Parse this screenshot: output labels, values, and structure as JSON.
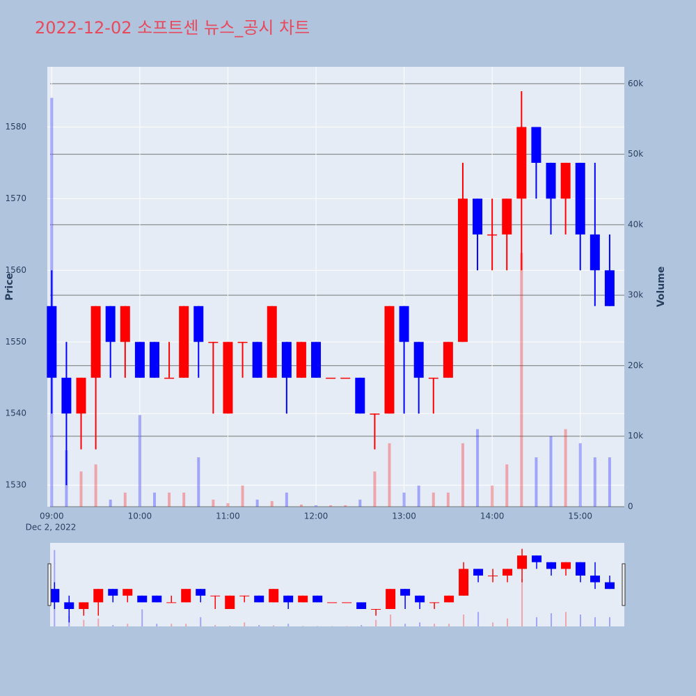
{
  "chart_data": {
    "type": "candlestick",
    "title": "2022-12-02 소프트센 뉴스_공시 차트",
    "y_label": "Price",
    "y2_label": "Volume",
    "x_date_label": "Dec 2, 2022",
    "increasing_color": "#ff0000",
    "decreasing_color": "#0000ff",
    "x": [
      "09:00",
      "09:10",
      "09:20",
      "09:30",
      "09:40",
      "09:50",
      "10:00",
      "10:10",
      "10:20",
      "10:30",
      "10:40",
      "10:50",
      "11:00",
      "11:10",
      "11:20",
      "11:30",
      "11:40",
      "11:50",
      "12:00",
      "12:10",
      "12:20",
      "12:30",
      "12:40",
      "12:50",
      "13:00",
      "13:10",
      "13:20",
      "13:30",
      "13:40",
      "13:50",
      "14:00",
      "14:10",
      "14:20",
      "14:30",
      "14:40",
      "14:50",
      "15:00",
      "15:10",
      "15:20"
    ],
    "open": [
      1555,
      1545,
      1540,
      1545,
      1555,
      1550,
      1550,
      1550,
      1545,
      1545,
      1555,
      1550,
      1540,
      1550,
      1550,
      1545,
      1550,
      1545,
      1550,
      1545,
      1545,
      1545,
      1540,
      1540,
      1555,
      1550,
      1545,
      1545,
      1550,
      1570,
      1565,
      1565,
      1570,
      1580,
      1575,
      1570,
      1575,
      1565,
      1560
    ],
    "high": [
      1560,
      1550,
      1545,
      1555,
      1555,
      1555,
      1550,
      1550,
      1550,
      1555,
      1555,
      1550,
      1550,
      1550,
      1550,
      1555,
      1550,
      1550,
      1550,
      1545,
      1545,
      1545,
      1540,
      1555,
      1555,
      1550,
      1545,
      1550,
      1575,
      1570,
      1570,
      1570,
      1585,
      1580,
      1575,
      1575,
      1575,
      1575,
      1565
    ],
    "low": [
      1540,
      1530,
      1535,
      1535,
      1545,
      1545,
      1545,
      1545,
      1545,
      1545,
      1545,
      1540,
      1540,
      1545,
      1545,
      1545,
      1540,
      1545,
      1545,
      1545,
      1545,
      1540,
      1535,
      1540,
      1540,
      1540,
      1540,
      1545,
      1550,
      1560,
      1560,
      1560,
      1560,
      1570,
      1565,
      1565,
      1560,
      1555,
      1555
    ],
    "close": [
      1545,
      1540,
      1545,
      1555,
      1550,
      1555,
      1545,
      1545,
      1545,
      1555,
      1550,
      1550,
      1550,
      1550,
      1545,
      1555,
      1545,
      1550,
      1545,
      1545,
      1545,
      1540,
      1540,
      1555,
      1550,
      1545,
      1545,
      1550,
      1570,
      1565,
      1565,
      1570,
      1580,
      1575,
      1570,
      1575,
      1565,
      1560,
      1555
    ],
    "volume": [
      58000,
      8000,
      5000,
      6000,
      1000,
      2000,
      13000,
      2000,
      2000,
      2000,
      7000,
      1000,
      500,
      3000,
      1000,
      800,
      2000,
      300,
      200,
      200,
      200,
      1000,
      5000,
      9000,
      2000,
      3000,
      2000,
      2000,
      9000,
      11000,
      3000,
      6000,
      36000,
      7000,
      10000,
      11000,
      9000,
      7000,
      7000
    ],
    "xlim": [
      "08:57",
      "15:30"
    ],
    "xticks": [
      "09:00",
      "10:00",
      "11:00",
      "12:00",
      "13:00",
      "14:00",
      "15:00"
    ],
    "ylim": [
      1527,
      1588.4
    ],
    "yticks": [
      1530,
      1540,
      1550,
      1560,
      1570,
      1580
    ],
    "y2lim": [
      0,
      62400
    ],
    "y2ticks": [
      0,
      {
        "value": 10000,
        "label": "10k"
      },
      {
        "value": 20000,
        "label": "20k"
      },
      {
        "value": 30000,
        "label": "30k"
      },
      {
        "value": 40000,
        "label": "40k"
      },
      {
        "value": 50000,
        "label": "50k"
      },
      {
        "value": 60000,
        "label": "60k"
      }
    ],
    "grid": true
  }
}
